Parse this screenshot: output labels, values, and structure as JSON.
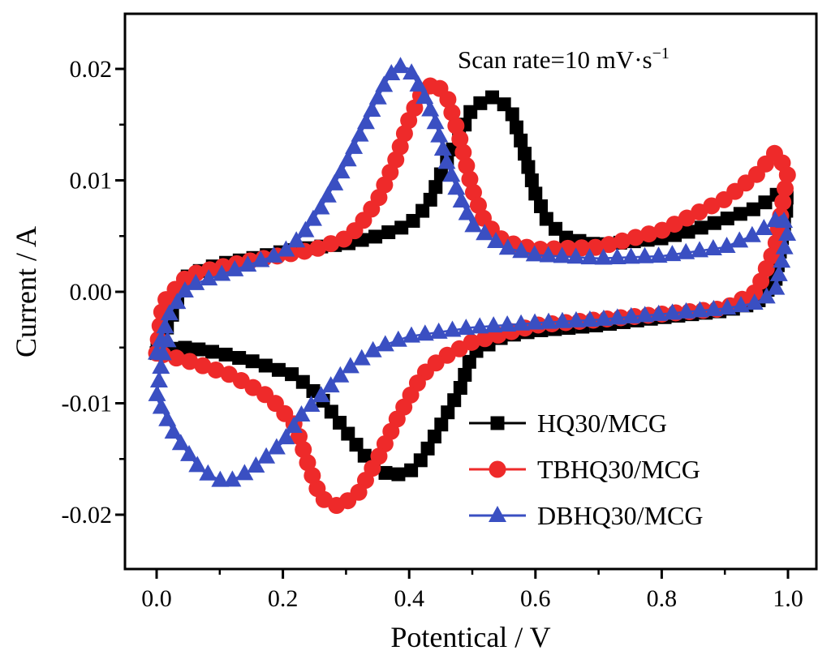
{
  "chart_data": {
    "type": "line",
    "title": "",
    "xlabel": "Potentical / V",
    "ylabel": "Current / A",
    "xlim": [
      -0.05,
      1.03
    ],
    "ylim": [
      -0.025,
      0.025
    ],
    "x_ticks": [
      0.0,
      0.2,
      0.4,
      0.6,
      0.8,
      1.0
    ],
    "x_tick_labels": [
      "0.0",
      "0.2",
      "0.4",
      "0.6",
      "0.8",
      "1.0"
    ],
    "y_ticks": [
      0.02,
      0.01,
      0.0,
      -0.01,
      -0.02
    ],
    "y_tick_labels": [
      "0.02",
      "0.01",
      "0.00",
      "-0.01",
      "-0.02"
    ],
    "annotation": {
      "text": "Scan rate=10 mV·s",
      "superscript": "−1"
    },
    "legend_position": "bottom-right",
    "series": [
      {
        "name": "HQ30/MCG",
        "color": "#000000",
        "marker": "square",
        "anodic": [
          [
            0.0,
            -0.0055
          ],
          [
            0.05,
            0.0015
          ],
          [
            0.1,
            0.0025
          ],
          [
            0.15,
            0.003
          ],
          [
            0.2,
            0.0036
          ],
          [
            0.25,
            0.004
          ],
          [
            0.3,
            0.0043
          ],
          [
            0.35,
            0.005
          ],
          [
            0.4,
            0.006
          ],
          [
            0.43,
            0.0078
          ],
          [
            0.45,
            0.0105
          ],
          [
            0.48,
            0.014
          ],
          [
            0.5,
            0.0165
          ],
          [
            0.53,
            0.0175
          ],
          [
            0.56,
            0.0165
          ],
          [
            0.58,
            0.013
          ],
          [
            0.6,
            0.0088
          ],
          [
            0.62,
            0.0062
          ],
          [
            0.65,
            0.0048
          ],
          [
            0.7,
            0.0042
          ],
          [
            0.75,
            0.0045
          ],
          [
            0.8,
            0.0048
          ],
          [
            0.85,
            0.0055
          ],
          [
            0.9,
            0.0065
          ],
          [
            0.95,
            0.0075
          ],
          [
            0.99,
            0.009
          ],
          [
            1.0,
            0.0083
          ]
        ],
        "cathodic": [
          [
            1.0,
            0.0083
          ],
          [
            0.98,
            0.001
          ],
          [
            0.95,
            -0.001
          ],
          [
            0.9,
            -0.0017
          ],
          [
            0.85,
            -0.002
          ],
          [
            0.8,
            -0.0023
          ],
          [
            0.7,
            -0.003
          ],
          [
            0.6,
            -0.0035
          ],
          [
            0.55,
            -0.004
          ],
          [
            0.5,
            -0.0055
          ],
          [
            0.48,
            -0.0088
          ],
          [
            0.45,
            -0.012
          ],
          [
            0.42,
            -0.015
          ],
          [
            0.4,
            -0.0162
          ],
          [
            0.37,
            -0.0165
          ],
          [
            0.34,
            -0.0155
          ],
          [
            0.3,
            -0.0125
          ],
          [
            0.26,
            -0.0095
          ],
          [
            0.22,
            -0.0075
          ],
          [
            0.15,
            -0.0062
          ],
          [
            0.1,
            -0.0055
          ],
          [
            0.05,
            -0.005
          ],
          [
            0.0,
            -0.0052
          ]
        ]
      },
      {
        "name": "TBHQ30/MCG",
        "color": "#ee2a2a",
        "marker": "circle",
        "anodic": [
          [
            0.0,
            -0.0055
          ],
          [
            0.01,
            -0.001
          ],
          [
            0.05,
            0.0015
          ],
          [
            0.1,
            0.0022
          ],
          [
            0.15,
            0.0028
          ],
          [
            0.2,
            0.0033
          ],
          [
            0.25,
            0.0038
          ],
          [
            0.3,
            0.0048
          ],
          [
            0.32,
            0.0058
          ],
          [
            0.35,
            0.0082
          ],
          [
            0.38,
            0.012
          ],
          [
            0.4,
            0.0155
          ],
          [
            0.42,
            0.0178
          ],
          [
            0.44,
            0.0188
          ],
          [
            0.46,
            0.0175
          ],
          [
            0.48,
            0.0138
          ],
          [
            0.5,
            0.0092
          ],
          [
            0.52,
            0.0062
          ],
          [
            0.55,
            0.0045
          ],
          [
            0.6,
            0.0038
          ],
          [
            0.7,
            0.004
          ],
          [
            0.8,
            0.0055
          ],
          [
            0.9,
            0.0083
          ],
          [
            0.95,
            0.0105
          ],
          [
            0.98,
            0.0125
          ],
          [
            1.0,
            0.0108
          ]
        ],
        "cathodic": [
          [
            1.0,
            0.0108
          ],
          [
            0.98,
            0.004
          ],
          [
            0.95,
            0.0
          ],
          [
            0.9,
            -0.0015
          ],
          [
            0.8,
            -0.002
          ],
          [
            0.7,
            -0.0025
          ],
          [
            0.6,
            -0.003
          ],
          [
            0.5,
            -0.0045
          ],
          [
            0.45,
            -0.006
          ],
          [
            0.42,
            -0.0075
          ],
          [
            0.38,
            -0.0115
          ],
          [
            0.35,
            -0.015
          ],
          [
            0.32,
            -0.018
          ],
          [
            0.29,
            -0.0193
          ],
          [
            0.26,
            -0.0185
          ],
          [
            0.24,
            -0.0155
          ],
          [
            0.22,
            -0.012
          ],
          [
            0.18,
            -0.0095
          ],
          [
            0.12,
            -0.0075
          ],
          [
            0.05,
            -0.0062
          ],
          [
            0.0,
            -0.0055
          ]
        ]
      },
      {
        "name": "DBHQ30/MCG",
        "color": "#3a4fc2",
        "marker": "triangle",
        "anodic": [
          [
            0.0,
            -0.0055
          ],
          [
            0.02,
            -0.002
          ],
          [
            0.05,
            0.0005
          ],
          [
            0.1,
            0.0015
          ],
          [
            0.15,
            0.0025
          ],
          [
            0.2,
            0.0035
          ],
          [
            0.23,
            0.005
          ],
          [
            0.26,
            0.0075
          ],
          [
            0.3,
            0.0115
          ],
          [
            0.33,
            0.015
          ],
          [
            0.36,
            0.0185
          ],
          [
            0.38,
            0.0203
          ],
          [
            0.4,
            0.02
          ],
          [
            0.42,
            0.018
          ],
          [
            0.44,
            0.0155
          ],
          [
            0.46,
            0.0115
          ],
          [
            0.48,
            0.0085
          ],
          [
            0.5,
            0.006
          ],
          [
            0.55,
            0.004
          ],
          [
            0.6,
            0.0033
          ],
          [
            0.7,
            0.003
          ],
          [
            0.8,
            0.0032
          ],
          [
            0.9,
            0.004
          ],
          [
            0.95,
            0.0052
          ],
          [
            0.99,
            0.0068
          ],
          [
            1.0,
            0.0055
          ]
        ],
        "cathodic": [
          [
            1.0,
            0.0055
          ],
          [
            0.98,
            0.0
          ],
          [
            0.95,
            -0.001
          ],
          [
            0.9,
            -0.0015
          ],
          [
            0.8,
            -0.002
          ],
          [
            0.7,
            -0.0025
          ],
          [
            0.6,
            -0.0028
          ],
          [
            0.5,
            -0.0032
          ],
          [
            0.4,
            -0.004
          ],
          [
            0.35,
            -0.005
          ],
          [
            0.3,
            -0.007
          ],
          [
            0.27,
            -0.0088
          ],
          [
            0.23,
            -0.011
          ],
          [
            0.2,
            -0.0135
          ],
          [
            0.15,
            -0.016
          ],
          [
            0.11,
            -0.0172
          ],
          [
            0.07,
            -0.016
          ],
          [
            0.03,
            -0.013
          ],
          [
            0.0,
            -0.0095
          ],
          [
            0.01,
            -0.0055
          ],
          [
            0.02,
            -0.004
          ]
        ]
      }
    ]
  }
}
